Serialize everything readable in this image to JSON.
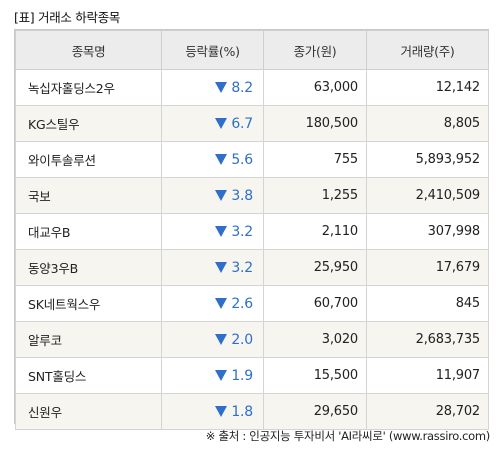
{
  "title": "[표] 거래소 하락종목",
  "columns": [
    "종목명",
    "등락률(%)",
    "종가(원)",
    "거래량(주)"
  ],
  "rows": [
    {
      "name": "녹십자홀딩스2우",
      "rate": "8.2",
      "close": "63,000",
      "volume": "12,142"
    },
    {
      "name": "KG스틸우",
      "rate": "6.7",
      "close": "180,500",
      "volume": "8,805"
    },
    {
      "name": "와이투솔루션",
      "rate": "5.6",
      "close": "755",
      "volume": "5,893,952"
    },
    {
      "name": "국보",
      "rate": "3.8",
      "close": "1,255",
      "volume": "2,410,509"
    },
    {
      "name": "대교우B",
      "rate": "3.2",
      "close": "2,110",
      "volume": "307,998"
    },
    {
      "name": "동양3우B",
      "rate": "3.2",
      "close": "25,950",
      "volume": "17,679"
    },
    {
      "name": "SK네트웍스우",
      "rate": "2.6",
      "close": "60,700",
      "volume": "845"
    },
    {
      "name": "알루코",
      "rate": "2.0",
      "close": "3,020",
      "volume": "2,683,735"
    },
    {
      "name": "SNT홀딩스",
      "rate": "1.9",
      "close": "15,500",
      "volume": "11,907"
    },
    {
      "name": "신원우",
      "rate": "1.8",
      "close": "29,650",
      "volume": "28,702"
    }
  ],
  "source": "※ 출처 : 인공지능 투자비서 'AI라씨로' (www.rassiro.com)",
  "colors": {
    "down": "#2f6fc9",
    "header_bg": "#ececec",
    "stripe_bg": "#f6f5ef"
  },
  "icons": {
    "down": "down-triangle-icon"
  }
}
